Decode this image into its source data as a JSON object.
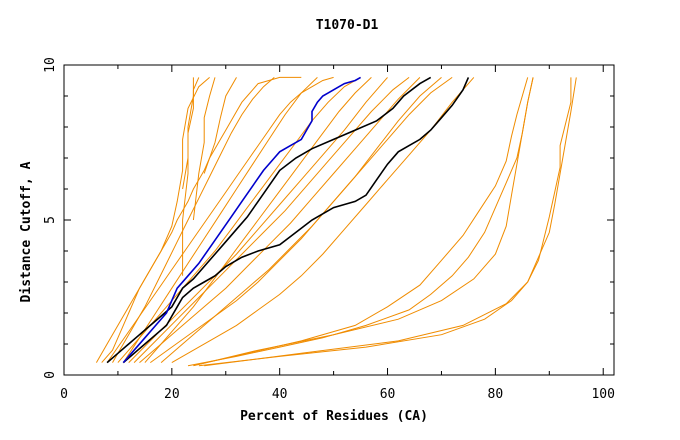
{
  "chart_data": {
    "type": "line",
    "title": "T1070-D1",
    "xlabel": "Percent of Residues (CA)",
    "ylabel": "Distance Cutoff, A",
    "xlim": [
      0,
      102
    ],
    "ylim": [
      0,
      10
    ],
    "x_ticks": [
      0,
      20,
      40,
      60,
      80,
      100
    ],
    "y_ticks": [
      0,
      5,
      10
    ],
    "colors": {
      "bundle": "#f08c00",
      "black": "#000000",
      "blue": "#0000cc"
    },
    "series": [
      {
        "color": "bundle",
        "x": [
          7,
          9,
          10,
          11,
          12,
          13,
          14,
          15,
          16,
          17,
          18,
          19,
          20,
          21,
          22,
          23,
          24,
          25,
          26,
          27,
          28,
          29,
          30,
          31,
          32,
          33,
          34,
          35,
          36,
          38,
          40,
          42,
          44
        ],
        "y": [
          0.4,
          0.8,
          1.2,
          1.6,
          2.0,
          2.4,
          2.8,
          3.1,
          3.4,
          3.7,
          4.0,
          4.3,
          4.6,
          5.0,
          5.3,
          5.6,
          6.0,
          6.3,
          6.6,
          7.0,
          7.3,
          7.6,
          7.9,
          8.2,
          8.5,
          8.8,
          9.0,
          9.2,
          9.4,
          9.5,
          9.6,
          9.6,
          9.6
        ]
      },
      {
        "color": "bundle",
        "x": [
          8,
          10,
          12,
          14,
          16,
          18,
          20,
          22,
          24,
          26,
          28,
          30,
          32,
          34,
          36,
          38,
          40,
          42,
          44,
          46,
          48,
          50
        ],
        "y": [
          0.4,
          0.9,
          1.4,
          1.9,
          2.4,
          2.9,
          3.4,
          3.9,
          4.4,
          4.9,
          5.4,
          5.9,
          6.4,
          6.9,
          7.4,
          7.9,
          8.4,
          8.8,
          9.1,
          9.3,
          9.5,
          9.6
        ]
      },
      {
        "color": "bundle",
        "x": [
          10,
          13,
          16,
          19,
          22,
          25,
          28,
          31,
          34,
          37,
          40,
          43,
          46,
          49,
          52,
          55
        ],
        "y": [
          0.4,
          1.0,
          1.6,
          2.2,
          2.8,
          3.4,
          4.0,
          4.7,
          5.4,
          6.1,
          6.8,
          7.5,
          8.2,
          8.8,
          9.3,
          9.6
        ]
      },
      {
        "color": "bundle",
        "x": [
          12,
          16,
          20,
          24,
          28,
          32,
          36,
          40,
          44,
          48,
          52,
          56,
          60
        ],
        "y": [
          0.4,
          1.1,
          1.8,
          2.5,
          3.2,
          3.9,
          4.7,
          5.5,
          6.3,
          7.1,
          7.9,
          8.8,
          9.6
        ]
      },
      {
        "color": "bundle",
        "x": [
          14,
          18,
          22,
          26,
          30,
          34,
          38,
          42,
          46,
          50,
          54,
          58,
          62,
          66
        ],
        "y": [
          0.4,
          1.0,
          1.6,
          2.2,
          2.8,
          3.5,
          4.2,
          4.9,
          5.7,
          6.5,
          7.3,
          8.1,
          8.9,
          9.6
        ]
      },
      {
        "color": "bundle",
        "x": [
          16,
          20,
          24,
          28,
          32,
          36,
          40,
          44,
          48,
          52,
          56,
          60,
          64,
          68,
          72
        ],
        "y": [
          0.4,
          0.9,
          1.4,
          1.9,
          2.4,
          3.0,
          3.7,
          4.4,
          5.2,
          6.0,
          6.8,
          7.6,
          8.4,
          9.1,
          9.6
        ]
      },
      {
        "color": "bundle",
        "x": [
          20,
          24,
          28,
          32,
          36,
          40,
          44,
          48,
          52,
          56,
          60,
          64,
          68,
          72,
          76
        ],
        "y": [
          0.4,
          0.8,
          1.2,
          1.6,
          2.1,
          2.6,
          3.2,
          3.9,
          4.7,
          5.5,
          6.3,
          7.1,
          7.9,
          8.8,
          9.6
        ]
      },
      {
        "color": "bundle",
        "x": [
          9,
          11,
          13,
          15,
          17,
          19,
          21,
          23,
          25,
          27,
          29,
          31,
          33,
          35,
          37,
          39
        ],
        "y": [
          0.4,
          1.0,
          1.6,
          2.2,
          2.9,
          3.6,
          4.3,
          5.0,
          5.7,
          6.4,
          7.1,
          7.8,
          8.4,
          8.9,
          9.3,
          9.6
        ]
      },
      {
        "color": "bundle",
        "x": [
          11,
          14,
          17,
          20,
          23,
          26,
          29,
          32,
          35,
          38,
          41,
          44,
          47
        ],
        "y": [
          0.4,
          1.2,
          2.0,
          2.8,
          3.6,
          4.4,
          5.2,
          6.0,
          6.8,
          7.6,
          8.4,
          9.1,
          9.6
        ]
      },
      {
        "color": "bundle",
        "x": [
          15,
          18,
          21,
          24,
          27,
          30,
          33,
          36,
          39,
          42,
          45,
          48,
          51,
          54,
          57
        ],
        "y": [
          0.4,
          1.0,
          1.6,
          2.2,
          2.9,
          3.6,
          4.3,
          5.0,
          5.7,
          6.4,
          7.1,
          7.8,
          8.5,
          9.1,
          9.6
        ]
      },
      {
        "color": "bundle",
        "x": [
          13,
          17,
          21,
          25,
          29,
          33,
          37,
          41,
          45,
          49,
          53,
          57,
          61,
          64
        ],
        "y": [
          0.4,
          1.1,
          1.8,
          2.5,
          3.2,
          3.9,
          4.6,
          5.3,
          6.1,
          6.9,
          7.7,
          8.5,
          9.2,
          9.6
        ]
      },
      {
        "color": "bundle",
        "x": [
          18,
          22,
          26,
          30,
          34,
          38,
          42,
          46,
          50,
          54,
          58,
          62,
          66,
          70
        ],
        "y": [
          0.4,
          1.0,
          1.6,
          2.2,
          2.8,
          3.4,
          4.1,
          4.8,
          5.6,
          6.4,
          7.3,
          8.2,
          9.0,
          9.6
        ]
      },
      {
        "color": "bundle",
        "x": [
          6,
          8,
          10,
          12,
          14,
          16,
          18,
          20,
          21,
          22,
          22,
          23,
          25,
          27
        ],
        "y": [
          0.4,
          1.0,
          1.6,
          2.2,
          2.8,
          3.4,
          4.0,
          4.8,
          5.6,
          6.6,
          7.6,
          8.6,
          9.3,
          9.6
        ]
      },
      {
        "color": "bundle",
        "x": [
          22,
          22,
          23,
          23,
          24,
          24,
          25
        ],
        "y": [
          3.2,
          5.0,
          6.5,
          7.8,
          8.6,
          9.2,
          9.6
        ]
      },
      {
        "color": "bundle",
        "x": [
          22,
          23,
          23,
          24,
          24
        ],
        "y": [
          6.0,
          7.0,
          8.0,
          9.0,
          9.6
        ]
      },
      {
        "color": "bundle",
        "x": [
          24,
          25,
          26,
          26,
          27,
          28
        ],
        "y": [
          5.0,
          6.5,
          7.5,
          8.3,
          9.0,
          9.6
        ]
      },
      {
        "color": "bundle",
        "x": [
          26,
          28,
          29,
          30,
          32
        ],
        "y": [
          6.5,
          7.5,
          8.3,
          9.0,
          9.6
        ]
      },
      {
        "color": "bundle",
        "x": [
          23,
          32,
          40,
          48,
          56,
          64,
          68,
          72,
          75,
          78,
          80,
          82,
          84,
          85,
          86,
          87
        ],
        "y": [
          0.3,
          0.6,
          0.9,
          1.2,
          1.6,
          2.1,
          2.6,
          3.2,
          3.8,
          4.6,
          5.4,
          6.2,
          7.0,
          7.8,
          8.8,
          9.6
        ]
      },
      {
        "color": "bundle",
        "x": [
          24,
          34,
          44,
          54,
          60,
          66,
          70,
          74,
          77,
          80,
          82,
          83,
          84,
          85,
          86
        ],
        "y": [
          0.3,
          0.7,
          1.1,
          1.6,
          2.2,
          2.9,
          3.7,
          4.5,
          5.3,
          6.1,
          6.9,
          7.7,
          8.4,
          9.0,
          9.6
        ]
      },
      {
        "color": "bundle",
        "x": [
          25,
          40,
          56,
          70,
          78,
          83,
          86,
          88,
          89,
          90,
          91,
          92,
          92,
          93,
          94,
          94
        ],
        "y": [
          0.3,
          0.6,
          0.9,
          1.3,
          1.8,
          2.4,
          3.0,
          3.7,
          4.4,
          5.1,
          5.9,
          6.7,
          7.4,
          8.1,
          8.8,
          9.6
        ]
      },
      {
        "color": "bundle",
        "x": [
          26,
          44,
          62,
          74,
          82,
          86,
          88,
          90,
          91,
          92,
          93,
          94,
          95
        ],
        "y": [
          0.3,
          0.7,
          1.1,
          1.6,
          2.3,
          3.0,
          3.8,
          4.6,
          5.5,
          6.5,
          7.5,
          8.5,
          9.6
        ]
      },
      {
        "color": "bundle",
        "x": [
          24,
          36,
          50,
          62,
          70,
          76,
          80,
          82,
          83,
          84,
          85,
          86,
          87
        ],
        "y": [
          0.3,
          0.8,
          1.3,
          1.8,
          2.4,
          3.1,
          3.9,
          4.8,
          5.8,
          6.8,
          7.8,
          8.8,
          9.6
        ]
      },
      {
        "color": "black",
        "x": [
          8,
          10,
          12,
          14,
          16,
          18,
          20,
          21,
          22,
          24,
          26,
          28,
          30,
          32,
          34,
          36,
          38,
          40,
          43,
          46,
          50,
          54,
          58,
          61,
          63,
          66,
          68
        ],
        "y": [
          0.4,
          0.7,
          1.0,
          1.3,
          1.6,
          1.9,
          2.2,
          2.5,
          2.8,
          3.1,
          3.5,
          3.9,
          4.3,
          4.7,
          5.1,
          5.6,
          6.1,
          6.6,
          7.0,
          7.3,
          7.6,
          7.9,
          8.2,
          8.6,
          9.0,
          9.4,
          9.6
        ]
      },
      {
        "color": "black",
        "x": [
          11,
          13,
          15,
          17,
          19,
          20,
          21,
          22,
          24,
          26,
          28,
          30,
          33,
          36,
          40,
          43,
          46,
          48,
          50,
          52,
          54,
          56,
          58,
          60,
          62,
          64,
          66,
          68,
          70,
          72,
          74,
          75
        ],
        "y": [
          0.4,
          0.7,
          1.0,
          1.3,
          1.6,
          1.9,
          2.2,
          2.5,
          2.8,
          3.0,
          3.2,
          3.5,
          3.8,
          4.0,
          4.2,
          4.6,
          5.0,
          5.2,
          5.4,
          5.5,
          5.6,
          5.8,
          6.3,
          6.8,
          7.2,
          7.4,
          7.6,
          7.9,
          8.3,
          8.7,
          9.2,
          9.6
        ]
      },
      {
        "color": "blue",
        "x": [
          11,
          13,
          15,
          17,
          19,
          20,
          21,
          23,
          25,
          27,
          29,
          31,
          33,
          35,
          37,
          39,
          40,
          42,
          44,
          45,
          46,
          46,
          47,
          48,
          49,
          50,
          51,
          52,
          54,
          55
        ],
        "y": [
          0.4,
          0.8,
          1.2,
          1.6,
          2.0,
          2.4,
          2.8,
          3.2,
          3.6,
          4.1,
          4.6,
          5.1,
          5.6,
          6.1,
          6.6,
          7.0,
          7.2,
          7.4,
          7.6,
          7.9,
          8.2,
          8.5,
          8.8,
          9.0,
          9.1,
          9.2,
          9.3,
          9.4,
          9.5,
          9.6
        ]
      }
    ]
  }
}
